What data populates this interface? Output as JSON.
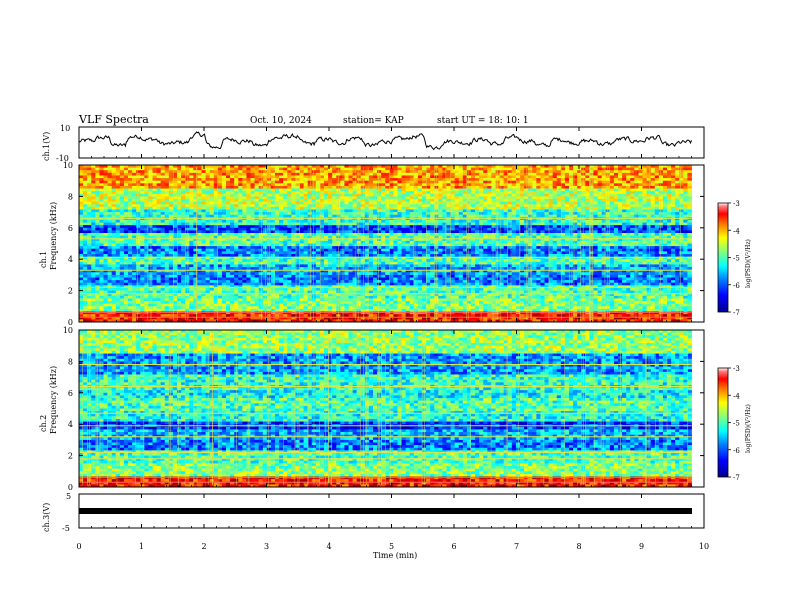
{
  "header": {
    "title": "VLF Spectra",
    "date": "Oct. 10, 2024",
    "station": "station= KAP",
    "start_ut": "start  UT =   18: 10: 1"
  },
  "chart_data": [
    {
      "type": "line",
      "panel": "ch1-waveform",
      "ylabel": "ch.1(V)",
      "ylim": [
        -10,
        10
      ],
      "yticks": [
        "10",
        "-10"
      ],
      "x_range_min": [
        0,
        9.8
      ],
      "description_values": "noisy waveform fluctuating roughly between -5 and +5 V",
      "values": [
        1,
        3,
        -2,
        4,
        2,
        -1,
        0,
        5,
        -3,
        2,
        1,
        -2,
        3,
        4,
        -1,
        2,
        0,
        3,
        -2,
        1,
        2,
        4,
        -3,
        1,
        0,
        2,
        -1,
        3,
        1,
        -2,
        2,
        0,
        1,
        -1,
        2,
        1,
        3,
        -2,
        0,
        1
      ]
    },
    {
      "type": "heatmap",
      "panel": "ch1-spectrogram",
      "ylabel_top": "ch.1",
      "ylabel": "Frequency (kHz)",
      "ylim": [
        0,
        10
      ],
      "yticks": [
        "0",
        "2",
        "4",
        "6",
        "8",
        "10"
      ],
      "colorbar": {
        "label": "log(PSD)(V²/Hz)",
        "range": [
          -7,
          -3
        ],
        "ticks": [
          "-3",
          "-4",
          "-5",
          "-6",
          "-7"
        ]
      }
    },
    {
      "type": "heatmap",
      "panel": "ch2-spectrogram",
      "ylabel_top": "ch.2",
      "ylabel": "Frequency (kHz)",
      "ylim": [
        0,
        10
      ],
      "yticks": [
        "0",
        "2",
        "4",
        "6",
        "8",
        "10"
      ],
      "colorbar": {
        "label": "log(PSD)(V²/Hz)",
        "range": [
          -7,
          -3
        ],
        "ticks": [
          "-3",
          "-4",
          "-5",
          "-6",
          "-7"
        ]
      }
    },
    {
      "type": "line",
      "panel": "ch3-waveform",
      "ylabel": "ch.3(V)",
      "ylim": [
        -5,
        5
      ],
      "yticks": [
        "5",
        "-5"
      ],
      "values": [
        -1,
        -1,
        -1,
        -1,
        -1
      ],
      "note": "thick flat band near -1 V"
    }
  ],
  "xaxis": {
    "label": "Time (min)",
    "ticks": [
      "0",
      "1",
      "2",
      "3",
      "4",
      "5",
      "6",
      "7",
      "8",
      "9",
      "10"
    ],
    "range": [
      0,
      10
    ]
  },
  "colors": {
    "jet": [
      "#00008f",
      "#0000ff",
      "#0080ff",
      "#00ffff",
      "#80ff80",
      "#ffff00",
      "#ff8000",
      "#ff0000",
      "#800000"
    ]
  }
}
